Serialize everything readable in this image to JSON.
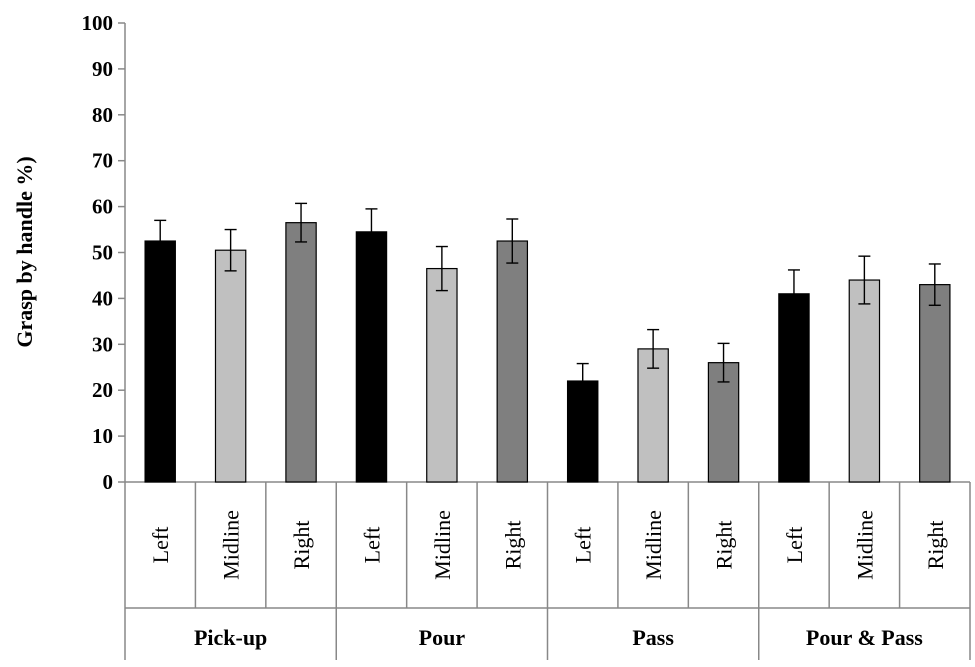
{
  "chart_data": {
    "type": "bar",
    "ylabel": "Grasp by handle %)",
    "ylim": [
      0,
      100
    ],
    "yticks": [
      0,
      10,
      20,
      30,
      40,
      50,
      60,
      70,
      80,
      90,
      100
    ],
    "grid": false,
    "legend": "none",
    "groups": [
      {
        "name": "Pick-up",
        "categories": [
          "Left",
          "Midline",
          "Right"
        ],
        "values": [
          52.5,
          50.5,
          56.5
        ],
        "errors": [
          4.5,
          4.5,
          4.2
        ]
      },
      {
        "name": "Pour",
        "categories": [
          "Left",
          "Midline",
          "Right"
        ],
        "values": [
          54.5,
          46.5,
          52.5
        ],
        "errors": [
          5.0,
          4.8,
          4.8
        ]
      },
      {
        "name": "Pass",
        "categories": [
          "Left",
          "Midline",
          "Right"
        ],
        "values": [
          22,
          29,
          26
        ],
        "errors": [
          3.8,
          4.2,
          4.2
        ]
      },
      {
        "name": "Pour & Pass",
        "categories": [
          "Left",
          "Midline",
          "Right"
        ],
        "values": [
          41,
          44,
          43
        ],
        "errors": [
          5.2,
          5.2,
          4.5
        ]
      }
    ],
    "bar_colors": {
      "Left": "#000000",
      "Midline": "#c0c0c0",
      "Right": "#7f7f7f"
    }
  }
}
